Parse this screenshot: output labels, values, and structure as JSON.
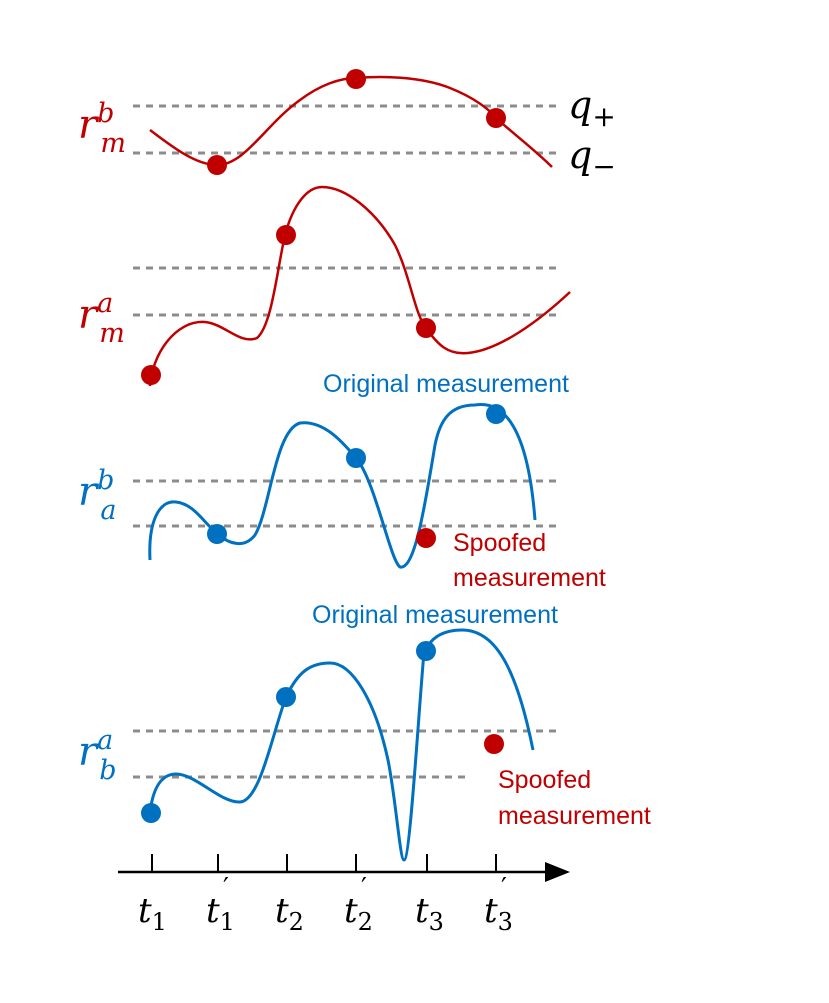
{
  "colors": {
    "red": "#c00000",
    "blue": "#0070c0",
    "dash": "#8c8c8c",
    "axis": "#000000"
  },
  "panels": {
    "rmb": {
      "symbol": "r",
      "sup": "b",
      "sub": "m",
      "color_key": "red"
    },
    "rma": {
      "symbol": "r",
      "sup": "a",
      "sub": "m",
      "color_key": "red"
    },
    "rab": {
      "symbol": "r",
      "sup": "b",
      "sub": "a",
      "color_key": "blue"
    },
    "rba": {
      "symbol": "r",
      "sup": "a",
      "sub": "b",
      "color_key": "blue"
    }
  },
  "thresholds": {
    "q_plus": {
      "symbol": "q",
      "sub": "+"
    },
    "q_minus": {
      "symbol": "q",
      "sub": "−"
    }
  },
  "annotations": {
    "original_1": "Original measurement",
    "spoofed_1_line1": "Spoofed",
    "spoofed_1_line2": "measurement",
    "original_2": "Original measurement",
    "spoofed_2_line1": "Spoofed",
    "spoofed_2_line2": "measurement"
  },
  "time_axis": {
    "ticks": [
      {
        "base": "t",
        "sub": "1",
        "prime": ""
      },
      {
        "base": "t",
        "sub": "1",
        "prime": "′"
      },
      {
        "base": "t",
        "sub": "2",
        "prime": ""
      },
      {
        "base": "t",
        "sub": "2",
        "prime": "′"
      },
      {
        "base": "t",
        "sub": "3",
        "prime": ""
      },
      {
        "base": "t",
        "sub": "3",
        "prime": "′"
      }
    ]
  }
}
